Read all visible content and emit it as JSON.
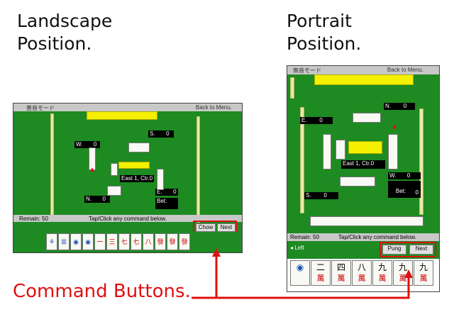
{
  "captions": {
    "landscape_line1": "Landscape",
    "landscape_line2": "Position.",
    "portrait_line1": "Portrait",
    "portrait_line2": "Position.",
    "command": "Command Buttons."
  },
  "landscape": {
    "titlebar_left": "普音モード",
    "titlebar_right": "Back to Menu.",
    "label_s": "S.       0",
    "label_w": "W.       0",
    "label_n": "N.       0",
    "label_e": "E.       0",
    "round": "East 1, Ctr.0",
    "bet": "Bet:",
    "status_left": "Remain: 50",
    "status_right": "Tap/Click any command  below.",
    "btn_chow": "Chow",
    "btn_next": "Next",
    "hand_glyphs": [
      "⚘",
      "𝍤",
      "◉",
      "◉",
      "一",
      "三",
      "七",
      "七",
      "八",
      "發",
      "發",
      "發"
    ]
  },
  "portrait": {
    "titlebar_left": "無音モード",
    "titlebar_right": "Back to Menu.",
    "label_n": "N.        0",
    "label_e": "E.        0",
    "label_w": "W.       0",
    "label_s": "S.        0",
    "round": "East 1, Ctr.0",
    "bet": "Bet:",
    "bet_value": "0",
    "status_left": "Remain: 50",
    "status_right": "Tap/Click any command  below.",
    "btn_left": "◂ Left",
    "btn_pung": "Pung",
    "btn_next": "Next",
    "hand_glyphs": [
      "◉",
      "二",
      "四",
      "八",
      "九",
      "九",
      "九"
    ],
    "hand_sub": [
      "",
      "萬",
      "萬",
      "萬",
      "萬",
      "萬",
      "萬"
    ]
  },
  "colors": {
    "felt": "#1e8a22",
    "highlight": "#e01010",
    "tile_back": "#f4f000"
  }
}
